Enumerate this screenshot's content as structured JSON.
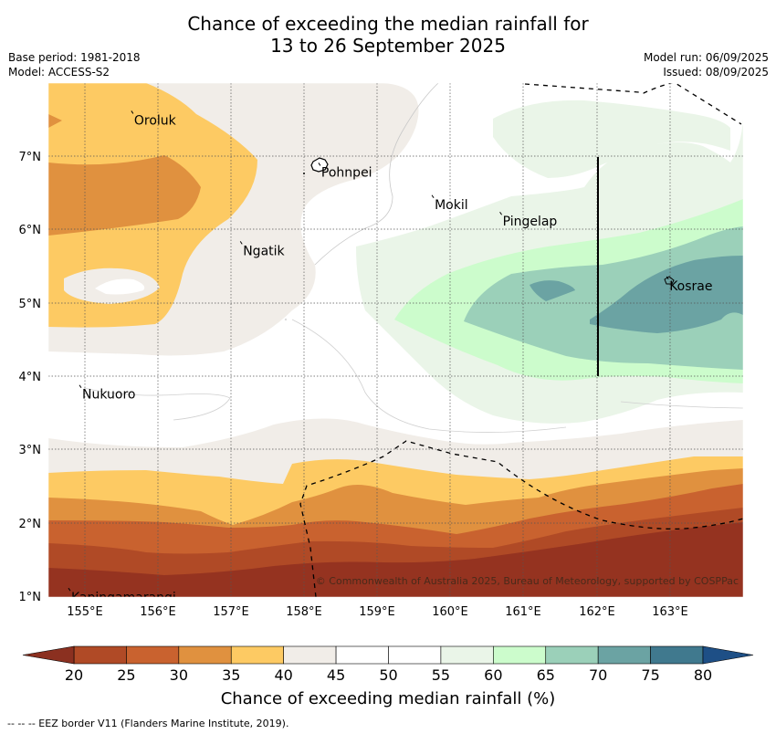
{
  "title_line1": "Chance of exceeding the median rainfall for",
  "title_line2": "13 to 26 September 2025",
  "meta_left": [
    "Base period: 1981-2018",
    "Model: ACCESS-S2"
  ],
  "meta_right": [
    "Model run: 06/09/2025",
    "Issued: 08/09/2025"
  ],
  "map": {
    "lon_labels": [
      "155°E",
      "156°E",
      "157°E",
      "158°E",
      "159°E",
      "160°E",
      "161°E",
      "162°E",
      "163°E"
    ],
    "lat_labels": [
      "7°N",
      "6°N",
      "5°N",
      "4°N",
      "3°N",
      "2°N",
      "1°N"
    ],
    "places": [
      {
        "name": "Oroluk",
        "lon": 155.66,
        "lat": 7.58
      },
      {
        "name": "Pohnpei",
        "lon": 158.22,
        "lat": 6.87
      },
      {
        "name": "Mokil",
        "lon": 159.77,
        "lat": 6.43
      },
      {
        "name": "Pingelap",
        "lon": 160.7,
        "lat": 6.2
      },
      {
        "name": "Ngatik",
        "lon": 157.15,
        "lat": 5.8
      },
      {
        "name": "Kosrae",
        "lon": 162.98,
        "lat": 5.32
      },
      {
        "name": "Nukuoro",
        "lon": 154.95,
        "lat": 3.84
      },
      {
        "name": "Kapingamarangi",
        "lon": 154.8,
        "lat": 1.07
      }
    ],
    "copyright": "© Commonwealth of Australia 2025, Bureau of Meteorology, supported by COSPPac"
  },
  "colorbar": {
    "ticks": [
      "20",
      "25",
      "30",
      "35",
      "40",
      "45",
      "50",
      "55",
      "60",
      "65",
      "70",
      "75",
      "80"
    ],
    "colors": [
      "#b04a26",
      "#c9622f",
      "#e0913f",
      "#fdca63",
      "#f1ede8",
      "#ffffff",
      "#ffffff",
      "#eaf5e8",
      "#ccfccc",
      "#9bd0b9",
      "#6ba3a3",
      "#40798e"
    ],
    "under_color": "#8b3020",
    "over_color": "#1e4f86",
    "label": "Chance of exceeding median rainfall (%)"
  },
  "footnote": "--  --  -- EEZ border V11 (Flanders Marine Institute, 2019)."
}
